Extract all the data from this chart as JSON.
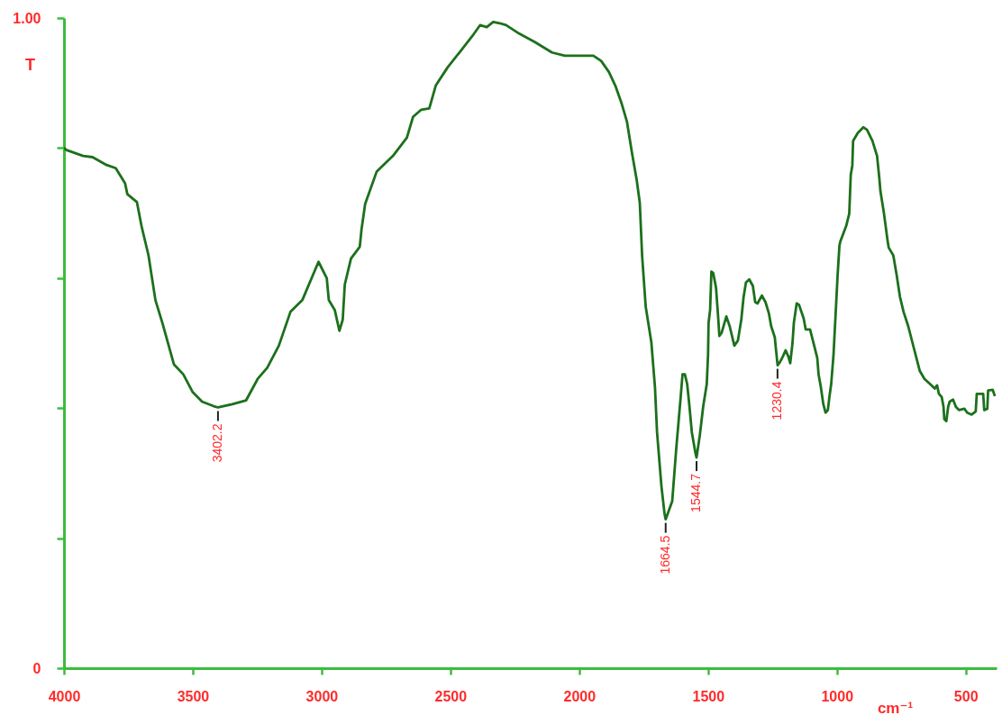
{
  "chart_data": {
    "type": "line",
    "xlabel": "cm⁻¹",
    "ylabel": "T",
    "x": [
      4000,
      3990,
      3926,
      3889,
      3835,
      3799,
      3763,
      3754,
      3717,
      3699,
      3672,
      3645,
      3618,
      3573,
      3537,
      3501,
      3464,
      3419,
      3402,
      3347,
      3293,
      3248,
      3211,
      3166,
      3121,
      3075,
      3012,
      2980,
      2972,
      2949,
      2931,
      2918,
      2910,
      2886,
      2852,
      2845,
      2831,
      2786,
      2723,
      2669,
      2645,
      2613,
      2582,
      2557,
      2511,
      2461,
      2410,
      2385,
      2359,
      2334,
      2309,
      2284,
      2233,
      2172,
      2106,
      2056,
      2000,
      1945,
      1915,
      1885,
      1860,
      1835,
      1815,
      1795,
      1777,
      1765,
      1756,
      1742,
      1720,
      1706,
      1698,
      1681,
      1669,
      1664.5,
      1639,
      1623,
      1606,
      1599,
      1590,
      1581,
      1572,
      1563,
      1549,
      1544.7,
      1532,
      1519,
      1505,
      1500,
      1498,
      1492,
      1487,
      1480,
      1469,
      1461,
      1456,
      1447,
      1429,
      1416,
      1398,
      1384,
      1371,
      1362,
      1353,
      1340,
      1326,
      1317,
      1308,
      1291,
      1277,
      1264,
      1255,
      1241,
      1235,
      1230,
      1222,
      1210,
      1199,
      1188,
      1181,
      1172,
      1167,
      1156,
      1147,
      1129,
      1121,
      1104,
      1088,
      1076,
      1071,
      1062,
      1053,
      1044,
      1035,
      1029,
      1022,
      1013,
      1004,
      997,
      990,
      986,
      964,
      952,
      949,
      946,
      940,
      937,
      919,
      897,
      883,
      862,
      844,
      835,
      831,
      817,
      804,
      799,
      781,
      768,
      755,
      741,
      723,
      701,
      678,
      660,
      638,
      620,
      611,
      604,
      593,
      586,
      583,
      575,
      568,
      562,
      549,
      538,
      526,
      505,
      494,
      477,
      461,
      457,
      432,
      428,
      416,
      413,
      395,
      388
    ],
    "series": [
      {
        "color": "#1c701c",
        "values": [
          0.8,
          0.797,
          0.788,
          0.786,
          0.774,
          0.769,
          0.746,
          0.729,
          0.717,
          0.68,
          0.635,
          0.566,
          0.531,
          0.467,
          0.452,
          0.425,
          0.41,
          0.403,
          0.401,
          0.406,
          0.412,
          0.445,
          0.462,
          0.496,
          0.548,
          0.566,
          0.625,
          0.6,
          0.566,
          0.551,
          0.519,
          0.536,
          0.59,
          0.63,
          0.648,
          0.675,
          0.714,
          0.764,
          0.788,
          0.816,
          0.848,
          0.859,
          0.861,
          0.896,
          0.924,
          0.949,
          0.975,
          0.989,
          0.986,
          0.994,
          0.992,
          0.989,
          0.976,
          0.963,
          0.947,
          0.942,
          0.942,
          0.942,
          0.934,
          0.917,
          0.896,
          0.868,
          0.841,
          0.792,
          0.751,
          0.716,
          0.635,
          0.556,
          0.501,
          0.432,
          0.363,
          0.28,
          0.238,
          0.229,
          0.257,
          0.34,
          0.418,
          0.452,
          0.452,
          0.437,
          0.402,
          0.363,
          0.331,
          0.324,
          0.358,
          0.402,
          0.437,
          0.482,
          0.531,
          0.551,
          0.61,
          0.608,
          0.585,
          0.541,
          0.511,
          0.516,
          0.541,
          0.526,
          0.496,
          0.504,
          0.536,
          0.571,
          0.593,
          0.598,
          0.588,
          0.563,
          0.561,
          0.573,
          0.563,
          0.546,
          0.526,
          0.509,
          0.485,
          0.466,
          0.47,
          0.479,
          0.489,
          0.479,
          0.469,
          0.501,
          0.531,
          0.561,
          0.559,
          0.538,
          0.521,
          0.521,
          0.496,
          0.477,
          0.452,
          0.432,
          0.407,
          0.393,
          0.397,
          0.417,
          0.437,
          0.482,
          0.551,
          0.605,
          0.65,
          0.657,
          0.68,
          0.699,
          0.729,
          0.759,
          0.773,
          0.811,
          0.823,
          0.832,
          0.828,
          0.811,
          0.788,
          0.753,
          0.734,
          0.699,
          0.66,
          0.647,
          0.635,
          0.605,
          0.571,
          0.548,
          0.526,
          0.492,
          0.457,
          0.445,
          0.437,
          0.43,
          0.435,
          0.422,
          0.417,
          0.402,
          0.383,
          0.38,
          0.402,
          0.41,
          0.413,
          0.402,
          0.397,
          0.399,
          0.393,
          0.39,
          0.395,
          0.422,
          0.422,
          0.397,
          0.399,
          0.427,
          0.428,
          0.42
        ]
      }
    ],
    "xlim": [
      4000,
      380
    ],
    "xticks": [
      4000,
      3500,
      3000,
      2500,
      2000,
      1500,
      1000,
      500
    ],
    "ylim": [
      0,
      1
    ],
    "yticks": [
      0,
      {
        "value": 0.2,
        "label": null
      },
      {
        "value": 0.4,
        "label": null
      },
      {
        "value": 0.6,
        "label": null
      },
      {
        "value": 0.8,
        "label": null
      },
      {
        "value": 1,
        "label": "1.00"
      }
    ],
    "annotations": [
      {
        "text": "3402.2",
        "x": 3402.2,
        "y": 0.401
      },
      {
        "text": "1664.5",
        "x": 1664.5,
        "y": 0.229
      },
      {
        "text": "1544.7",
        "x": 1544.7,
        "y": 0.324
      },
      {
        "text": "1230.4",
        "x": 1230.4,
        "y": 0.466
      }
    ]
  }
}
